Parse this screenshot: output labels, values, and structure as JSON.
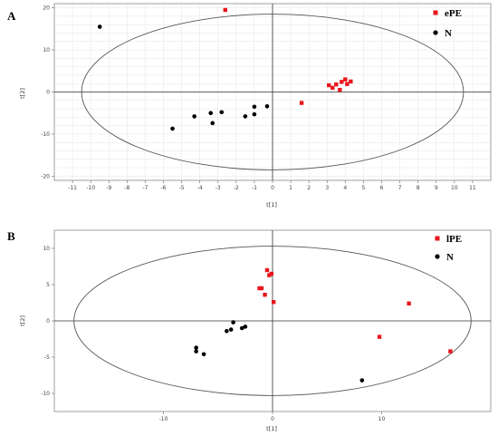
{
  "chart_data": [
    {
      "panel": "A",
      "type": "scatter",
      "xlabel": "t[1]",
      "ylabel": "t[2]",
      "xlim": [
        -12,
        12
      ],
      "ylim": [
        -21,
        21
      ],
      "xticks": [
        -11,
        -10,
        -9,
        -8,
        -7,
        -6,
        -5,
        -4,
        -3,
        -2,
        -1,
        0,
        1,
        2,
        3,
        4,
        5,
        6,
        7,
        8,
        9,
        10,
        11
      ],
      "yticks": [
        -20,
        -10,
        0,
        10,
        20
      ],
      "grid": true,
      "legend_position": "top-right",
      "ellipse": {
        "center": [
          0,
          0
        ],
        "rx": 10.5,
        "ry": 18.5
      },
      "series": [
        {
          "name": "ePE",
          "color": "#e8161b",
          "marker": "square",
          "points": [
            [
              -2.6,
              19.5
            ],
            [
              1.6,
              -2.6
            ],
            [
              3.1,
              1.6
            ],
            [
              3.3,
              1.0
            ],
            [
              3.5,
              1.8
            ],
            [
              3.7,
              0.5
            ],
            [
              3.8,
              2.4
            ],
            [
              4.0,
              3.0
            ],
            [
              4.1,
              1.9
            ],
            [
              4.3,
              2.5
            ]
          ]
        },
        {
          "name": "N",
          "color": "#000000",
          "marker": "circle",
          "points": [
            [
              -9.5,
              15.5
            ],
            [
              -5.5,
              -8.7
            ],
            [
              -4.3,
              -5.8
            ],
            [
              -3.4,
              -5.0
            ],
            [
              -3.3,
              -7.4
            ],
            [
              -2.8,
              -4.8
            ],
            [
              -1.5,
              -5.8
            ],
            [
              -1.0,
              -5.3
            ],
            [
              -1.0,
              -3.5
            ],
            [
              -0.3,
              -3.4
            ]
          ]
        }
      ]
    },
    {
      "panel": "B",
      "type": "scatter",
      "xlabel": "t[1]",
      "ylabel": "t[2]",
      "xlim": [
        -20,
        20
      ],
      "ylim": [
        -12.5,
        12.5
      ],
      "xticks": [
        -10,
        0,
        10
      ],
      "yticks": [
        -10,
        -5,
        0,
        5,
        10
      ],
      "grid": false,
      "legend_position": "top-right",
      "ellipse": {
        "center": [
          0,
          0
        ],
        "rx": 18.2,
        "ry": 10.3
      },
      "series": [
        {
          "name": "lPE",
          "color": "#e8161b",
          "marker": "square",
          "points": [
            [
              -0.5,
              7.0
            ],
            [
              -0.3,
              6.3
            ],
            [
              -0.1,
              6.5
            ],
            [
              -1.2,
              4.5
            ],
            [
              -1.0,
              4.5
            ],
            [
              -0.7,
              3.6
            ],
            [
              0.1,
              2.6
            ],
            [
              12.5,
              2.4
            ],
            [
              9.8,
              -2.2
            ],
            [
              16.3,
              -4.2
            ]
          ]
        },
        {
          "name": "N",
          "color": "#000000",
          "marker": "circle",
          "points": [
            [
              -3.6,
              -0.2
            ],
            [
              -3.8,
              -1.2
            ],
            [
              -4.2,
              -1.4
            ],
            [
              -2.8,
              -1.0
            ],
            [
              -2.5,
              -0.8
            ],
            [
              -7.0,
              -3.7
            ],
            [
              -7.0,
              -4.2
            ],
            [
              -6.3,
              -4.6
            ],
            [
              8.2,
              -8.2
            ]
          ]
        }
      ]
    }
  ]
}
